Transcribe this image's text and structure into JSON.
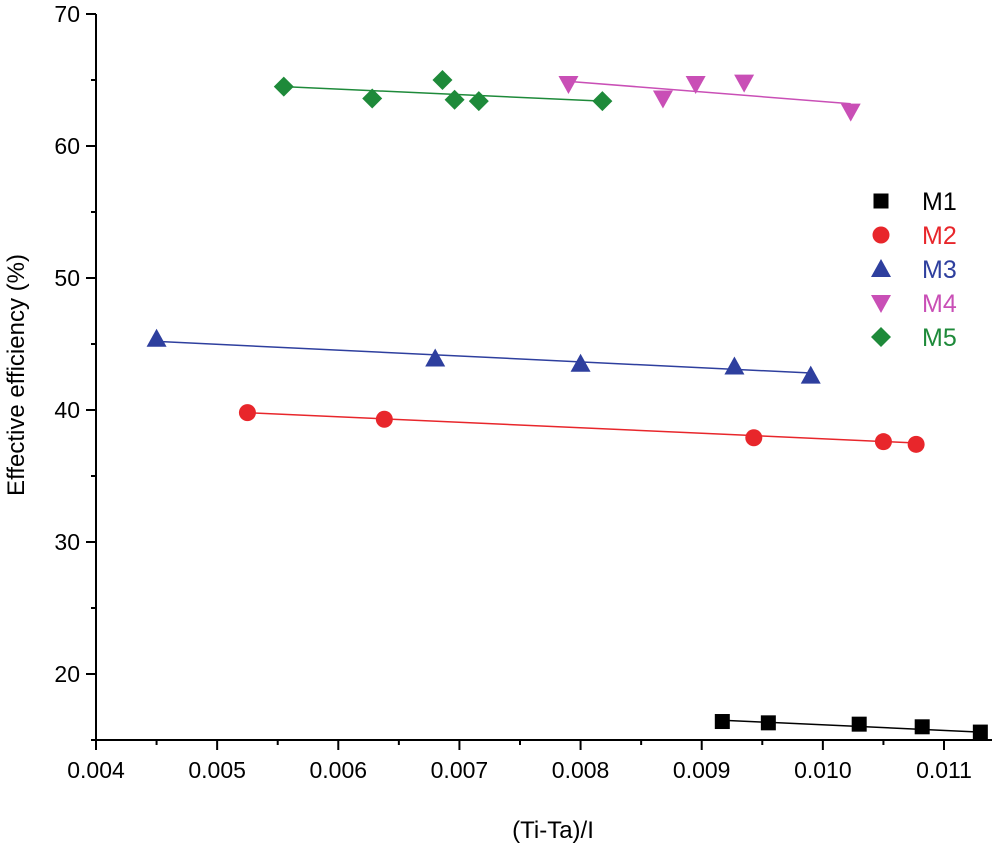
{
  "chart_data": {
    "type": "scatter",
    "xlabel": "(Ti-Ta)/I",
    "ylabel": "Effective efficiency (%)",
    "xlim": [
      0.004,
      0.0115
    ],
    "ylim": [
      15,
      70
    ],
    "x_ticks": [
      0.004,
      0.005,
      0.006,
      0.007,
      0.008,
      0.009,
      0.01,
      0.011
    ],
    "x_tick_labels": [
      "0.004",
      "0.005",
      "0.006",
      "0.007",
      "0.008",
      "0.009",
      "0.010",
      "0.011"
    ],
    "y_ticks": [
      20,
      30,
      40,
      50,
      60,
      70
    ],
    "y_tick_labels": [
      "20",
      "30",
      "40",
      "50",
      "60",
      "70"
    ],
    "legend_position": "right",
    "series": [
      {
        "name": "M1",
        "marker": "square",
        "color": "#000000",
        "x": [
          0.00917,
          0.00955,
          0.0103,
          0.01082,
          0.0113
        ],
        "y": [
          16.4,
          16.3,
          16.2,
          16.0,
          15.6
        ],
        "fit": {
          "x": [
            0.00917,
            0.0113
          ],
          "y": [
            16.5,
            15.6
          ]
        }
      },
      {
        "name": "M2",
        "marker": "circle",
        "color": "#e8262b",
        "x": [
          0.00525,
          0.00638,
          0.00943,
          0.0105,
          0.01077
        ],
        "y": [
          39.8,
          39.3,
          37.9,
          37.6,
          37.4
        ],
        "fit": {
          "x": [
            0.00525,
            0.01077
          ],
          "y": [
            39.8,
            37.5
          ]
        }
      },
      {
        "name": "M3",
        "marker": "triangle-up",
        "color": "#2e3f9e",
        "x": [
          0.0045,
          0.0068,
          0.008,
          0.00927,
          0.0099
        ],
        "y": [
          45.4,
          43.9,
          43.5,
          43.3,
          42.6
        ],
        "fit": {
          "x": [
            0.0045,
            0.0099
          ],
          "y": [
            45.2,
            42.8
          ]
        }
      },
      {
        "name": "M4",
        "marker": "triangle-down",
        "color": "#c94fb6",
        "x": [
          0.0079,
          0.00868,
          0.00895,
          0.00935,
          0.01023
        ],
        "y": [
          64.7,
          63.6,
          64.7,
          64.8,
          62.6
        ],
        "fit": {
          "x": [
            0.0079,
            0.01023
          ],
          "y": [
            64.9,
            63.2
          ]
        }
      },
      {
        "name": "M5",
        "marker": "diamond",
        "color": "#1e8a3a",
        "x": [
          0.00555,
          0.00628,
          0.00686,
          0.00696,
          0.00716,
          0.00818
        ],
        "y": [
          64.5,
          63.6,
          65.0,
          63.5,
          63.4,
          63.4
        ],
        "fit": {
          "x": [
            0.00555,
            0.00818
          ],
          "y": [
            64.5,
            63.4
          ]
        }
      }
    ]
  }
}
